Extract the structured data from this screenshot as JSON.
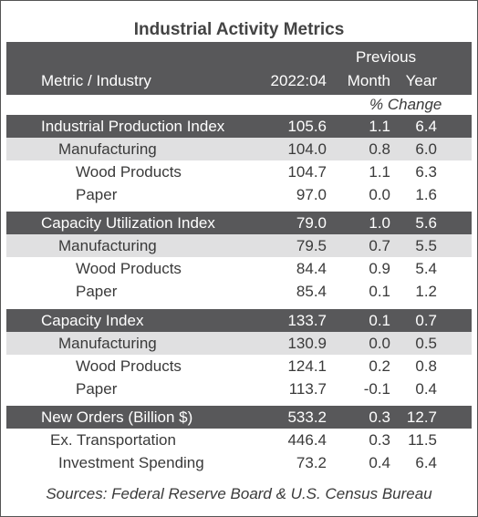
{
  "header": {
    "title": "Industrial Activity Metrics",
    "group": "Previous",
    "columns": [
      "Metric / Industry",
      "2022:04",
      "Month",
      "Year"
    ],
    "subheader": "% Change"
  },
  "sections": [
    {
      "rows": [
        [
          "Industrial Production Index",
          "105.6",
          "1.1",
          "6.4"
        ],
        [
          "Manufacturing",
          "104.0",
          "0.8",
          "6.0"
        ],
        [
          "Wood Products",
          "104.7",
          "1.1",
          "6.3"
        ],
        [
          "Paper",
          "97.0",
          "0.0",
          "1.6"
        ]
      ]
    },
    {
      "rows": [
        [
          "Capacity Utilization Index",
          "79.0",
          "1.0",
          "5.6"
        ],
        [
          "Manufacturing",
          "79.5",
          "0.7",
          "5.5"
        ],
        [
          "Wood Products",
          "84.4",
          "0.9",
          "5.4"
        ],
        [
          "Paper",
          "85.4",
          "0.1",
          "1.2"
        ]
      ]
    },
    {
      "rows": [
        [
          "Capacity Index",
          "133.7",
          "0.1",
          "0.7"
        ],
        [
          "Manufacturing",
          "130.9",
          "0.0",
          "0.5"
        ],
        [
          "Wood Products",
          "124.1",
          "0.2",
          "0.8"
        ],
        [
          "Paper",
          "113.7",
          "-0.1",
          "0.4"
        ]
      ]
    },
    {
      "rows": [
        [
          "New Orders (Billion $)",
          "533.2",
          "0.3",
          "12.7"
        ],
        [
          "Ex. Transportation",
          "446.4",
          "0.3",
          "11.5"
        ],
        [
          "Investment Spending",
          "73.2",
          "0.4",
          "6.4"
        ]
      ]
    }
  ],
  "footer": {
    "source": "Sources: Federal Reserve Board & U.S. Census Bureau"
  }
}
